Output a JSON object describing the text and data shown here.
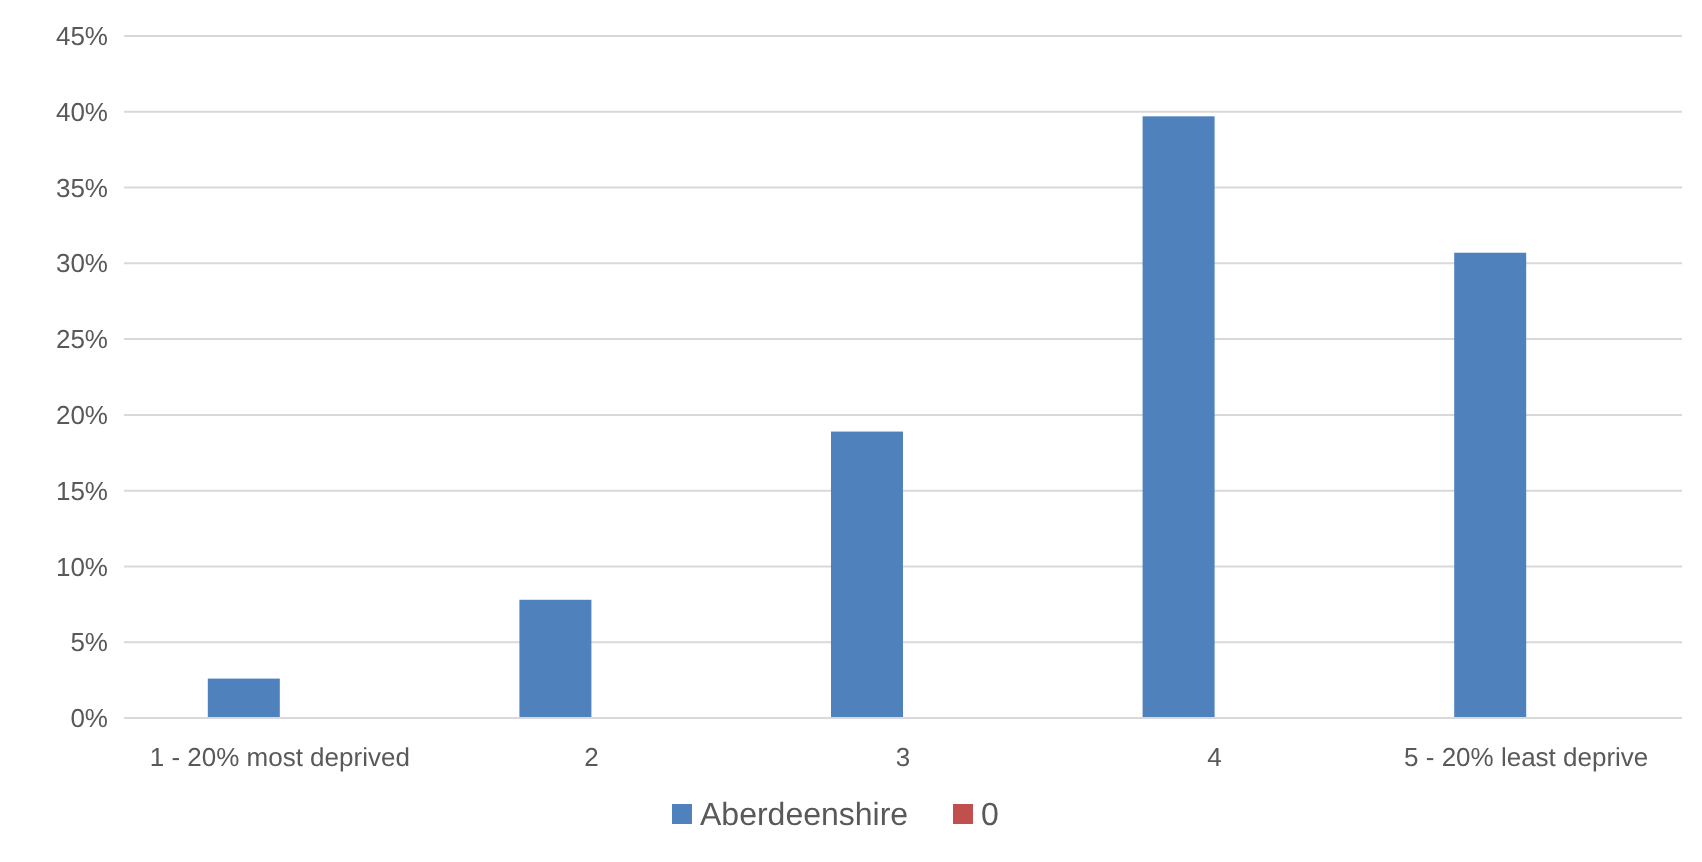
{
  "chart_data": {
    "type": "bar",
    "categories": [
      "1 - 20% most deprived",
      "2",
      "3",
      "4",
      "5 - 20% least deprive"
    ],
    "series": [
      {
        "name": "Aberdeenshire",
        "color": "#4f81bd",
        "values": [
          2.6,
          7.8,
          18.9,
          39.7,
          30.7
        ]
      },
      {
        "name": "0",
        "color": "#c0504d",
        "values": [
          0,
          0,
          0,
          0,
          0
        ]
      }
    ],
    "ylim": [
      0,
      45
    ],
    "yticks": [
      {
        "value": 0,
        "label": "0%"
      },
      {
        "value": 5,
        "label": "5%"
      },
      {
        "value": 10,
        "label": "10%"
      },
      {
        "value": 15,
        "label": "15%"
      },
      {
        "value": 20,
        "label": "20%"
      },
      {
        "value": 25,
        "label": "25%"
      },
      {
        "value": 30,
        "label": "30%"
      },
      {
        "value": 35,
        "label": "35%"
      },
      {
        "value": 40,
        "label": "40%"
      },
      {
        "value": 45,
        "label": "45%"
      }
    ],
    "grid": "y",
    "legend": "bottom"
  }
}
